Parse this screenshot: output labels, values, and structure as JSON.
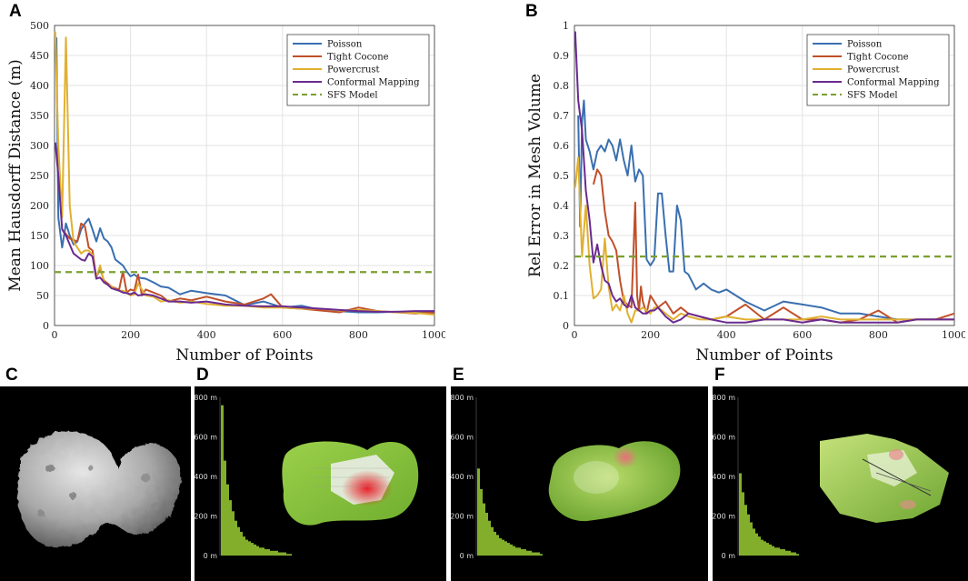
{
  "panels": {
    "A": "A",
    "B": "B",
    "C": "C",
    "D": "D",
    "E": "E",
    "F": "F"
  },
  "colors": {
    "poisson": "#3a6fb0",
    "tight": "#c0502a",
    "powercrust": "#e0b030",
    "conformal": "#6a2a90",
    "sfs": "#7aa030",
    "mesh_green": "#8cc63f",
    "mesh_red": "#e8202a",
    "hist_green": "#9acd32"
  },
  "chart_data": [
    {
      "type": "line",
      "panel": "A",
      "xlabel": "Number of Points",
      "ylabel": "Mean Hausdorff Distance (m)",
      "xlim": [
        0,
        1000
      ],
      "ylim": [
        0,
        500
      ],
      "xticks": [
        0,
        200,
        400,
        600,
        800,
        1000
      ],
      "yticks": [
        0,
        50,
        100,
        150,
        200,
        250,
        300,
        350,
        400,
        450,
        500
      ],
      "grid": true,
      "legend_position": "top-right",
      "series": [
        {
          "name": "Poisson",
          "key": "poisson",
          "style": "solid",
          "x": [
            5,
            10,
            20,
            30,
            40,
            50,
            60,
            70,
            80,
            90,
            100,
            110,
            120,
            130,
            140,
            150,
            160,
            170,
            180,
            190,
            200,
            210,
            220,
            240,
            260,
            280,
            300,
            330,
            360,
            400,
            450,
            500,
            550,
            600,
            650,
            700,
            750,
            800,
            850,
            900,
            950,
            1000
          ],
          "y": [
            480,
            180,
            130,
            170,
            150,
            135,
            140,
            160,
            170,
            178,
            160,
            140,
            162,
            145,
            140,
            130,
            110,
            105,
            100,
            90,
            82,
            85,
            80,
            78,
            72,
            65,
            63,
            52,
            58,
            54,
            50,
            34,
            40,
            30,
            33,
            26,
            24,
            22,
            22,
            23,
            22,
            20
          ]
        },
        {
          "name": "Tight Cocone",
          "key": "tight",
          "style": "solid",
          "x": [
            20,
            40,
            60,
            70,
            80,
            90,
            100,
            110,
            120,
            130,
            140,
            150,
            160,
            170,
            180,
            190,
            200,
            210,
            220,
            230,
            240,
            260,
            280,
            300,
            330,
            360,
            400,
            450,
            500,
            550,
            570,
            600,
            650,
            700,
            750,
            800,
            850,
            900,
            950,
            1000
          ],
          "y": [
            160,
            145,
            140,
            170,
            165,
            130,
            125,
            80,
            95,
            75,
            70,
            65,
            62,
            60,
            90,
            55,
            60,
            58,
            85,
            50,
            60,
            55,
            50,
            40,
            45,
            42,
            48,
            40,
            35,
            45,
            52,
            30,
            28,
            25,
            22,
            30,
            24,
            22,
            20,
            22
          ]
        },
        {
          "name": "Powercrust",
          "key": "powercrust",
          "style": "solid",
          "x": [
            2,
            10,
            20,
            30,
            40,
            50,
            60,
            70,
            80,
            90,
            100,
            110,
            120,
            130,
            140,
            150,
            160,
            170,
            180,
            190,
            200,
            210,
            220,
            240,
            260,
            280,
            300,
            330,
            360,
            400,
            450,
            500,
            550,
            600,
            650,
            700,
            750,
            800,
            850,
            900,
            950,
            1000
          ],
          "y": [
            490,
            300,
            180,
            480,
            200,
            140,
            130,
            120,
            125,
            125,
            118,
            80,
            100,
            72,
            68,
            65,
            60,
            58,
            58,
            55,
            50,
            52,
            70,
            50,
            48,
            40,
            42,
            38,
            40,
            36,
            33,
            33,
            30,
            30,
            28,
            28,
            25,
            26,
            24,
            22,
            21,
            18
          ]
        },
        {
          "name": "Conformal Mapping",
          "key": "conformal",
          "style": "solid",
          "x": [
            2,
            10,
            20,
            30,
            40,
            50,
            60,
            70,
            80,
            90,
            100,
            110,
            120,
            130,
            140,
            150,
            160,
            170,
            180,
            190,
            200,
            210,
            220,
            240,
            260,
            280,
            300,
            330,
            360,
            400,
            450,
            500,
            550,
            600,
            650,
            700,
            750,
            800,
            850,
            900,
            950,
            1000
          ],
          "y": [
            305,
            250,
            160,
            150,
            135,
            120,
            115,
            110,
            108,
            120,
            115,
            78,
            80,
            72,
            68,
            62,
            60,
            58,
            55,
            54,
            52,
            55,
            50,
            52,
            50,
            45,
            40,
            40,
            38,
            40,
            35,
            33,
            32,
            32,
            30,
            28,
            26,
            24,
            23,
            23,
            24,
            24
          ]
        },
        {
          "name": "SFS Model",
          "key": "sfs",
          "style": "dashed",
          "x": [
            0,
            1000
          ],
          "y": [
            89,
            89
          ]
        }
      ]
    },
    {
      "type": "line",
      "panel": "B",
      "xlabel": "Number of Points",
      "ylabel": "Rel Error in Mesh Volume",
      "xlim": [
        0,
        1000
      ],
      "ylim": [
        0,
        1
      ],
      "xticks": [
        0,
        200,
        400,
        600,
        800,
        1000
      ],
      "yticks": [
        0,
        0.1,
        0.2,
        0.3,
        0.4,
        0.5,
        0.6,
        0.7,
        0.8,
        0.9,
        1
      ],
      "grid": true,
      "legend_position": "top-right",
      "series": [
        {
          "name": "Poisson",
          "key": "poisson",
          "style": "solid",
          "x": [
            10,
            15,
            20,
            25,
            30,
            40,
            50,
            60,
            70,
            80,
            90,
            100,
            110,
            120,
            130,
            140,
            150,
            160,
            170,
            180,
            190,
            200,
            210,
            220,
            230,
            240,
            250,
            260,
            270,
            280,
            290,
            300,
            320,
            340,
            360,
            380,
            400,
            450,
            500,
            550,
            600,
            650,
            700,
            750,
            800,
            850,
            900,
            950,
            1000
          ],
          "y": [
            0.7,
            0.33,
            0.68,
            0.75,
            0.62,
            0.58,
            0.52,
            0.58,
            0.6,
            0.58,
            0.62,
            0.6,
            0.55,
            0.62,
            0.55,
            0.5,
            0.6,
            0.48,
            0.52,
            0.5,
            0.22,
            0.2,
            0.22,
            0.44,
            0.44,
            0.3,
            0.18,
            0.18,
            0.4,
            0.35,
            0.18,
            0.17,
            0.12,
            0.14,
            0.12,
            0.11,
            0.12,
            0.08,
            0.05,
            0.08,
            0.07,
            0.06,
            0.04,
            0.04,
            0.03,
            0.02,
            0.02,
            0.02,
            0.02
          ]
        },
        {
          "name": "Tight Cocone",
          "key": "tight",
          "style": "solid",
          "x": [
            50,
            60,
            70,
            80,
            90,
            100,
            110,
            120,
            130,
            140,
            150,
            160,
            165,
            170,
            175,
            180,
            190,
            200,
            220,
            240,
            260,
            280,
            300,
            330,
            360,
            400,
            450,
            500,
            550,
            600,
            650,
            700,
            750,
            800,
            850,
            900,
            950,
            1000
          ],
          "y": [
            0.47,
            0.52,
            0.5,
            0.38,
            0.3,
            0.28,
            0.25,
            0.15,
            0.08,
            0.07,
            0.06,
            0.41,
            0.1,
            0.05,
            0.13,
            0.08,
            0.04,
            0.1,
            0.06,
            0.08,
            0.04,
            0.06,
            0.04,
            0.03,
            0.02,
            0.03,
            0.07,
            0.02,
            0.06,
            0.02,
            0.02,
            0.01,
            0.02,
            0.05,
            0.01,
            0.02,
            0.02,
            0.04
          ]
        },
        {
          "name": "Powercrust",
          "key": "powercrust",
          "style": "solid",
          "x": [
            2,
            10,
            20,
            30,
            40,
            50,
            60,
            70,
            80,
            90,
            100,
            110,
            120,
            130,
            140,
            150,
            160,
            170,
            180,
            190,
            200,
            210,
            220,
            240,
            260,
            280,
            300,
            330,
            360,
            400,
            450,
            500,
            550,
            600,
            650,
            700,
            750,
            800,
            850,
            900,
            950,
            1000
          ],
          "y": [
            0.46,
            0.56,
            0.23,
            0.4,
            0.2,
            0.09,
            0.1,
            0.12,
            0.29,
            0.13,
            0.05,
            0.07,
            0.05,
            0.1,
            0.04,
            0.01,
            0.05,
            0.05,
            0.06,
            0.05,
            0.04,
            0.06,
            0.06,
            0.04,
            0.02,
            0.04,
            0.03,
            0.02,
            0.02,
            0.03,
            0.02,
            0.02,
            0.02,
            0.02,
            0.03,
            0.02,
            0.02,
            0.02,
            0.02,
            0.02,
            0.02,
            0.02
          ]
        },
        {
          "name": "Conformal Mapping",
          "key": "conformal",
          "style": "solid",
          "x": [
            2,
            10,
            20,
            30,
            40,
            50,
            60,
            70,
            80,
            90,
            100,
            110,
            120,
            130,
            140,
            150,
            160,
            170,
            180,
            190,
            200,
            210,
            220,
            240,
            260,
            280,
            300,
            330,
            360,
            400,
            450,
            500,
            550,
            600,
            650,
            700,
            750,
            800,
            850,
            900,
            950,
            1000
          ],
          "y": [
            0.98,
            0.75,
            0.65,
            0.45,
            0.35,
            0.21,
            0.27,
            0.2,
            0.15,
            0.14,
            0.1,
            0.08,
            0.09,
            0.07,
            0.06,
            0.1,
            0.06,
            0.05,
            0.04,
            0.04,
            0.05,
            0.05,
            0.06,
            0.03,
            0.01,
            0.02,
            0.04,
            0.03,
            0.02,
            0.01,
            0.01,
            0.02,
            0.02,
            0.01,
            0.02,
            0.01,
            0.01,
            0.01,
            0.01,
            0.02,
            0.02,
            0.02
          ]
        },
        {
          "name": "SFS Model",
          "key": "sfs",
          "style": "dashed",
          "x": [
            0,
            1000
          ],
          "y": [
            0.23,
            0.23
          ]
        }
      ]
    }
  ],
  "histograms": {
    "labels": [
      "800 m",
      "600 m",
      "400 m",
      "200 m",
      "0 m"
    ],
    "D": [
      0.95,
      0.6,
      0.45,
      0.35,
      0.28,
      0.22,
      0.18,
      0.15,
      0.12,
      0.1,
      0.09,
      0.08,
      0.07,
      0.06,
      0.05,
      0.05,
      0.04,
      0.04,
      0.03,
      0.03,
      0.03,
      0.02,
      0.02,
      0.02,
      0.01,
      0.01
    ],
    "E": [
      0.55,
      0.42,
      0.33,
      0.27,
      0.22,
      0.18,
      0.15,
      0.13,
      0.11,
      0.1,
      0.09,
      0.08,
      0.07,
      0.06,
      0.05,
      0.05,
      0.04,
      0.04,
      0.03,
      0.03,
      0.02,
      0.02,
      0.02,
      0.01
    ],
    "F": [
      0.52,
      0.4,
      0.32,
      0.26,
      0.21,
      0.17,
      0.14,
      0.12,
      0.1,
      0.09,
      0.08,
      0.07,
      0.06,
      0.05,
      0.05,
      0.04,
      0.04,
      0.03,
      0.03,
      0.02,
      0.02,
      0.01
    ]
  }
}
